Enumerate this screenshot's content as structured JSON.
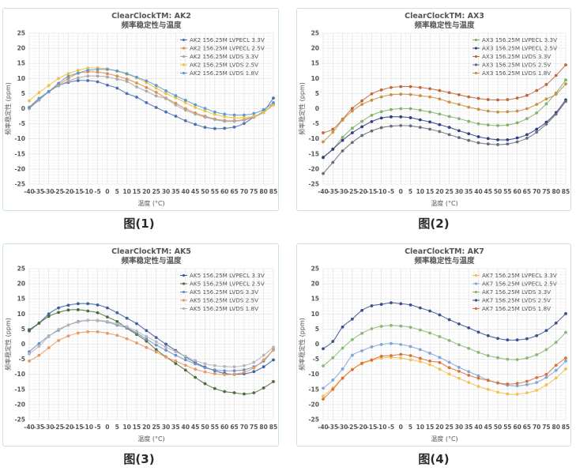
{
  "figures": [
    {
      "caption": "图(1)"
    },
    {
      "caption": "图(2)"
    },
    {
      "caption": "图(3)"
    },
    {
      "caption": "图(4)"
    }
  ],
  "chart_data": [
    {
      "type": "line",
      "title": "ClearClockTM: AK2",
      "subtitle": "频率稳定性与温度",
      "xlabel": "温度 (°C)",
      "ylabel": "频率稳定性 (ppm)",
      "x": [
        -40,
        -35,
        -30,
        -25,
        -20,
        -15,
        -10,
        -5,
        0,
        5,
        10,
        15,
        20,
        25,
        30,
        35,
        40,
        45,
        50,
        55,
        60,
        65,
        70,
        75,
        80,
        85
      ],
      "xticks": [
        "-40",
        "-35",
        "-30",
        "-25",
        "-20",
        "-15",
        "-10",
        "-5",
        "0",
        "5",
        "10",
        "15",
        "20",
        "25",
        "30",
        "35",
        "40",
        "45",
        "50",
        "55",
        "60",
        "65",
        "70",
        "75",
        "80",
        "85"
      ],
      "ylim": [
        -25,
        25
      ],
      "yticks": [
        25,
        20,
        15,
        10,
        5,
        0,
        -5,
        -10,
        -15,
        -20,
        -25
      ],
      "grid": true,
      "legend_position": "top-right",
      "series": [
        {
          "name": "AK2 156.25M LVPECL 3.3V",
          "color": "#4a6fb5",
          "values": [
            0.2,
            3.0,
            5.6,
            7.6,
            8.7,
            9.3,
            9.3,
            8.9,
            7.8,
            6.8,
            5.0,
            3.8,
            2.0,
            0.4,
            -1.1,
            -2.5,
            -4.0,
            -5.2,
            -6.2,
            -6.6,
            -6.5,
            -6.1,
            -4.9,
            -2.8,
            -0.8,
            3.5
          ]
        },
        {
          "name": "AK2 156.25M LVPECL 2.5V",
          "color": "#e08a4a",
          "values": [
            0.4,
            3.3,
            5.7,
            7.9,
            10.0,
            11.7,
            12.2,
            12.1,
            11.6,
            10.8,
            9.8,
            8.5,
            7.0,
            5.4,
            3.5,
            1.8,
            0.0,
            -1.4,
            -2.5,
            -3.4,
            -3.9,
            -4.0,
            -3.6,
            -2.6,
            -1.2,
            1.6
          ]
        },
        {
          "name": "AK2 156.25M LVDS 3.3V",
          "color": "#a8a8a8",
          "values": [
            0.0,
            2.8,
            5.5,
            7.6,
            9.1,
            10.2,
            10.8,
            10.8,
            10.5,
            9.8,
            9.0,
            7.2,
            5.8,
            4.2,
            3.3,
            1.2,
            -0.5,
            -1.8,
            -2.8,
            -3.6,
            -4.2,
            -4.2,
            -3.8,
            -2.8,
            -1.3,
            1.5
          ]
        },
        {
          "name": "AK2 156.25M LVDS 2.5V",
          "color": "#f0c040",
          "values": [
            2.6,
            5.3,
            7.7,
            10.0,
            11.6,
            12.7,
            13.4,
            13.5,
            13.2,
            12.4,
            11.4,
            10.2,
            8.6,
            6.8,
            5.0,
            3.6,
            2.0,
            0.4,
            -0.8,
            -1.9,
            -2.6,
            -3.0,
            -3.0,
            -2.5,
            -1.2,
            1.2
          ]
        },
        {
          "name": "AK2 156.25M LVDS 1.8V",
          "color": "#5a9ad0",
          "values": [
            0.5,
            3.4,
            5.7,
            8.4,
            10.7,
            11.8,
            12.7,
            13.0,
            13.0,
            12.5,
            11.6,
            10.4,
            9.2,
            7.7,
            5.9,
            4.3,
            2.8,
            1.3,
            0.1,
            -1.1,
            -1.8,
            -2.1,
            -2.1,
            -1.6,
            -0.3,
            2.0
          ]
        }
      ]
    },
    {
      "type": "line",
      "title": "ClearClockTM: AX3",
      "subtitle": "频率稳定性与温度",
      "xlabel": "温度 (°C)",
      "ylabel": "频率稳定性 (ppm)",
      "x": [
        -40,
        -35,
        -30,
        -25,
        -20,
        -15,
        -10,
        -5,
        0,
        5,
        10,
        15,
        20,
        25,
        30,
        35,
        40,
        45,
        50,
        55,
        60,
        65,
        70,
        75,
        80,
        85
      ],
      "xticks": [
        "-40",
        "-35",
        "-30",
        "-25",
        "-20",
        "-15",
        "-10",
        "-5",
        "0",
        "5",
        "10",
        "15",
        "20",
        "25",
        "30",
        "35",
        "40",
        "45",
        "50",
        "55",
        "60",
        "65",
        "70",
        "75",
        "80",
        "85"
      ],
      "ylim": [
        -25,
        25
      ],
      "yticks": [
        25,
        20,
        15,
        10,
        5,
        0,
        -5,
        -10,
        -15,
        -20,
        -25
      ],
      "grid": true,
      "legend_position": "top-right",
      "series": [
        {
          "name": "AX3 156.25M LVPECL 3.3V",
          "color": "#7fb36a",
          "values": [
            -16.0,
            -13.5,
            -9.5,
            -6.5,
            -4.2,
            -2.2,
            -1.0,
            -0.3,
            0.0,
            0.0,
            -0.5,
            -1.1,
            -1.8,
            -2.6,
            -3.3,
            -4.2,
            -5.0,
            -5.4,
            -5.6,
            -5.4,
            -4.7,
            -3.3,
            -1.4,
            1.6,
            5.2,
            9.5
          ]
        },
        {
          "name": "AX3 156.25M LVPECL 2.5V",
          "color": "#2f3d80",
          "values": [
            -16.2,
            -13.4,
            -10.5,
            -8.0,
            -6.0,
            -4.3,
            -3.1,
            -2.7,
            -2.7,
            -3.0,
            -3.7,
            -4.4,
            -5.3,
            -6.2,
            -7.3,
            -8.3,
            -9.3,
            -9.9,
            -10.3,
            -10.3,
            -9.7,
            -8.6,
            -6.8,
            -4.5,
            -1.3,
            2.9
          ]
        },
        {
          "name": "AX3 156.25M LVDS 3.3V",
          "color": "#c0673a",
          "values": [
            -8.0,
            -6.8,
            -3.5,
            0.1,
            2.6,
            4.9,
            6.2,
            7.0,
            7.3,
            7.3,
            7.0,
            6.6,
            6.0,
            5.3,
            4.6,
            3.9,
            3.4,
            3.0,
            2.9,
            3.0,
            3.5,
            4.4,
            6.0,
            8.0,
            11.0,
            14.5
          ]
        },
        {
          "name": "AX3 156.25M LVDS 2.5V",
          "color": "#6a6a7a",
          "values": [
            -21.5,
            -17.8,
            -14.0,
            -11.2,
            -8.9,
            -7.4,
            -6.3,
            -5.8,
            -5.6,
            -5.7,
            -6.2,
            -6.8,
            -7.6,
            -8.6,
            -9.6,
            -10.5,
            -11.3,
            -11.7,
            -11.9,
            -11.7,
            -11.0,
            -9.8,
            -7.8,
            -5.1,
            -1.8,
            2.4
          ]
        },
        {
          "name": "AX3 156.25M LVDS 1.8V",
          "color": "#c89040",
          "values": [
            -11.0,
            -7.8,
            -3.8,
            -0.8,
            1.4,
            2.8,
            3.9,
            4.6,
            4.8,
            4.7,
            4.3,
            3.9,
            3.2,
            2.2,
            1.4,
            0.5,
            -0.2,
            -0.8,
            -1.1,
            -1.0,
            -0.8,
            0.0,
            1.4,
            3.2,
            4.8,
            8.2
          ]
        }
      ]
    },
    {
      "type": "line",
      "title": "ClearClockTM: AK5",
      "subtitle": "频率稳定性与温度",
      "xlabel": "温度 (°C)",
      "ylabel": "频率稳定性 (ppm)",
      "x": [
        -40,
        -35,
        -30,
        -25,
        -20,
        -15,
        -10,
        -5,
        0,
        5,
        10,
        15,
        20,
        25,
        30,
        35,
        40,
        45,
        50,
        55,
        60,
        65,
        70,
        75,
        80,
        85
      ],
      "xticks": [
        "-40",
        "-35",
        "-30",
        "-25",
        "-20",
        "-15",
        "-10",
        "-5",
        "0",
        "5",
        "10",
        "15",
        "20",
        "25",
        "30",
        "35",
        "40",
        "45",
        "50",
        "55",
        "60",
        "65",
        "70",
        "75",
        "80",
        "85"
      ],
      "ylim": [
        -25,
        25
      ],
      "yticks": [
        25,
        20,
        15,
        10,
        5,
        0,
        -5,
        -10,
        -15,
        -20,
        -25
      ],
      "grid": true,
      "legend_position": "top-right",
      "series": [
        {
          "name": "AK5 156.25M LVPECL 3.3V",
          "color": "#3a5f9e",
          "values": [
            4.8,
            7.0,
            10.0,
            12.0,
            12.9,
            13.4,
            13.4,
            13.0,
            12.0,
            10.4,
            8.6,
            6.8,
            4.5,
            2.2,
            0.0,
            -2.1,
            -4.2,
            -6.1,
            -7.6,
            -8.8,
            -9.7,
            -10.0,
            -9.8,
            -9.1,
            -7.5,
            -5.2
          ]
        },
        {
          "name": "AK5 156.25M LVPECL 2.5V",
          "color": "#4d6b3a",
          "values": [
            4.4,
            6.9,
            9.2,
            10.5,
            11.3,
            11.4,
            11.0,
            10.4,
            9.0,
            7.5,
            5.3,
            3.2,
            1.0,
            -1.8,
            -4.2,
            -6.4,
            -8.6,
            -11.0,
            -13.1,
            -14.7,
            -15.7,
            -16.1,
            -16.5,
            -16.1,
            -14.5,
            -12.4
          ]
        },
        {
          "name": "AK5 156.25M LVDS 3.3V",
          "color": "#6b8fc8",
          "values": [
            -2.5,
            0.2,
            2.7,
            4.6,
            6.3,
            7.5,
            7.9,
            7.8,
            7.3,
            6.3,
            5.4,
            3.7,
            1.7,
            -0.3,
            -2.0,
            -3.7,
            -5.2,
            -6.5,
            -7.8,
            -8.5,
            -8.8,
            -8.8,
            -8.5,
            -7.5,
            -5.6,
            -1.7
          ]
        },
        {
          "name": "AK5 156.25M LVDS 2.5V",
          "color": "#e69a62",
          "values": [
            -5.6,
            -3.7,
            -1.2,
            1.2,
            2.7,
            3.7,
            4.1,
            4.1,
            3.6,
            2.9,
            1.8,
            0.4,
            -1.1,
            -2.6,
            -4.3,
            -5.6,
            -7.0,
            -8.3,
            -9.2,
            -9.8,
            -10.1,
            -9.9,
            -9.3,
            -7.9,
            -5.2,
            -2.0
          ]
        },
        {
          "name": "AK5 156.25M LVDS 1.8V",
          "color": "#b5b5b5",
          "values": [
            -3.2,
            -0.7,
            2.5,
            4.9,
            6.3,
            7.3,
            7.9,
            7.9,
            7.5,
            6.7,
            5.8,
            4.3,
            2.5,
            0.8,
            -1.0,
            -2.5,
            -4.0,
            -5.4,
            -6.5,
            -7.1,
            -7.4,
            -7.5,
            -7.1,
            -6.0,
            -3.7,
            -1.0
          ]
        }
      ]
    },
    {
      "type": "line",
      "title": "ClearClockTM: AK7",
      "subtitle": "频率稳定性与温度",
      "xlabel": "温度 (°C)",
      "ylabel": "频率稳定性 (ppm)",
      "x": [
        -40,
        -35,
        -30,
        -25,
        -20,
        -15,
        -10,
        -5,
        0,
        5,
        10,
        15,
        20,
        25,
        30,
        35,
        40,
        45,
        50,
        55,
        60,
        65,
        70,
        75,
        80,
        85
      ],
      "xticks": [
        "-40",
        "-35",
        "-30",
        "-25",
        "-20",
        "-15",
        "-10",
        "-5",
        "0",
        "5",
        "10",
        "15",
        "20",
        "25",
        "30",
        "35",
        "40",
        "45",
        "50",
        "55",
        "60",
        "65",
        "70",
        "75",
        "80",
        "85"
      ],
      "ylim": [
        -25,
        25
      ],
      "yticks": [
        25,
        20,
        15,
        10,
        5,
        0,
        -5,
        -10,
        -15,
        -20,
        -25
      ],
      "grid": true,
      "legend_position": "top-right",
      "series": [
        {
          "name": "AK7 156.25M LVPECL 3.3V",
          "color": "#f0c050",
          "values": [
            -17.2,
            -14.5,
            -11.2,
            -8.4,
            -6.5,
            -5.4,
            -4.6,
            -4.4,
            -4.6,
            -5.2,
            -5.8,
            -6.8,
            -8.3,
            -9.9,
            -11.3,
            -12.7,
            -14.0,
            -15.0,
            -15.9,
            -16.5,
            -16.6,
            -16.1,
            -15.3,
            -13.5,
            -11.2,
            -8.2
          ]
        },
        {
          "name": "AK7 156.25M LVPECL 2.5V",
          "color": "#7aa6d8",
          "values": [
            -14.6,
            -11.9,
            -8.2,
            -3.7,
            -2.2,
            -0.9,
            -0.1,
            0.2,
            -0.1,
            -0.8,
            -1.8,
            -3.0,
            -4.4,
            -6.0,
            -7.7,
            -9.1,
            -10.5,
            -11.9,
            -12.9,
            -13.6,
            -13.8,
            -13.4,
            -12.7,
            -11.0,
            -8.7,
            -5.6
          ]
        },
        {
          "name": "AK7 156.25M LVDS 3.3V",
          "color": "#8ab872",
          "values": [
            -7.2,
            -4.5,
            -1.3,
            1.5,
            3.6,
            5.1,
            5.9,
            6.2,
            6.0,
            5.6,
            4.7,
            3.7,
            2.5,
            1.2,
            -0.2,
            -1.4,
            -2.7,
            -3.8,
            -4.5,
            -5.0,
            -5.1,
            -4.6,
            -3.5,
            -1.8,
            0.6,
            3.9
          ]
        },
        {
          "name": "AK7 156.25M LVDS 2.5V",
          "color": "#3a4f8e",
          "values": [
            -1.5,
            0.9,
            5.7,
            8.3,
            11.2,
            12.7,
            13.2,
            13.7,
            13.4,
            13.0,
            12.0,
            11.0,
            9.7,
            8.1,
            6.7,
            5.4,
            4.0,
            2.8,
            1.9,
            1.4,
            1.4,
            1.8,
            2.8,
            4.5,
            7.0,
            10.1
          ]
        },
        {
          "name": "AK7 156.25M LVDS 1.8V",
          "color": "#d87038",
          "values": [
            -18.2,
            -15.0,
            -11.3,
            -8.4,
            -6.3,
            -5.2,
            -4.0,
            -3.8,
            -3.4,
            -3.8,
            -4.7,
            -5.6,
            -6.1,
            -7.8,
            -9.0,
            -10.3,
            -11.3,
            -12.0,
            -12.8,
            -13.2,
            -13.0,
            -12.3,
            -11.1,
            -10.0,
            -7.0,
            -4.6
          ]
        }
      ]
    }
  ]
}
